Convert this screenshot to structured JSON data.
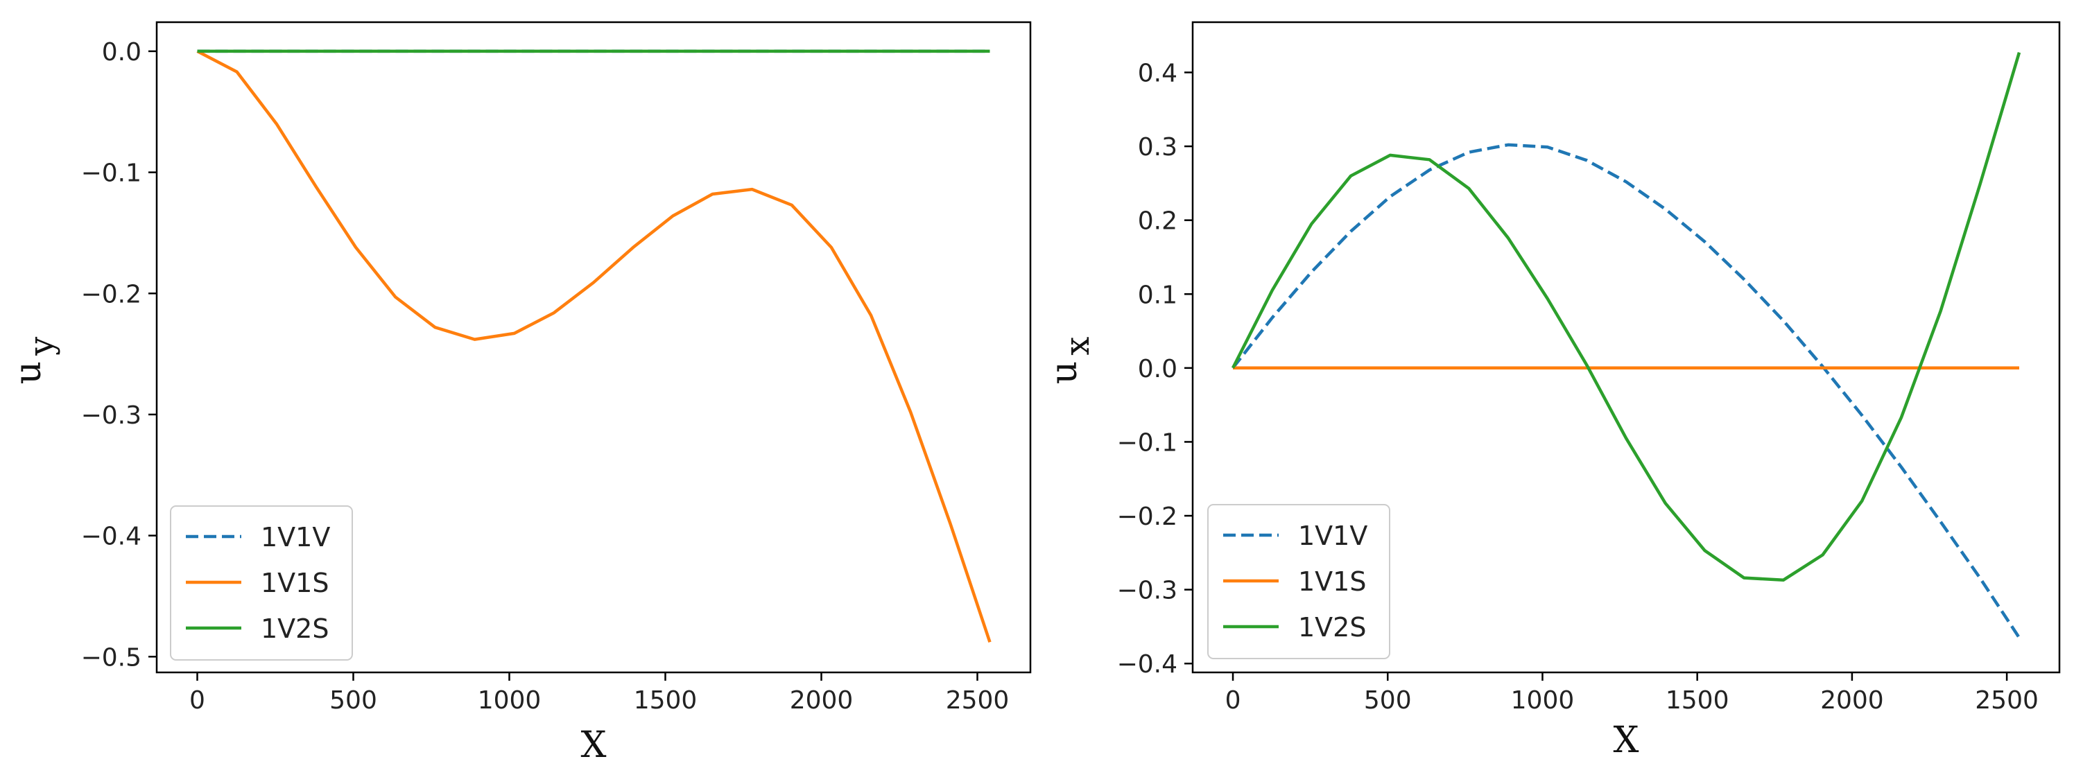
{
  "chart_data": [
    {
      "type": "line",
      "title": "",
      "xlabel": "X",
      "ylabel": "u",
      "ylabel_subscript": "y",
      "xlim": [
        -130,
        2670
      ],
      "ylim": [
        -0.513,
        0.024
      ],
      "xticks": [
        0,
        500,
        1000,
        1500,
        2000,
        2500
      ],
      "xtick_labels": [
        "0",
        "500",
        "1000",
        "1500",
        "2000",
        "2500"
      ],
      "yticks": [
        0.0,
        -0.1,
        -0.2,
        -0.3,
        -0.4,
        -0.5
      ],
      "ytick_labels": [
        "0.0",
        "−0.1",
        "−0.2",
        "−0.3",
        "−0.4",
        "−0.5"
      ],
      "grid": false,
      "legend_position": "lower-left",
      "x": [
        0,
        127,
        254,
        381,
        508,
        635,
        762,
        889,
        1016,
        1143,
        1270,
        1397,
        1524,
        1651,
        1778,
        1905,
        2032,
        2159,
        2286,
        2413,
        2540
      ],
      "series": [
        {
          "name": "1V1V",
          "color": "#1f77b4",
          "dash": "dashed",
          "values": [
            0,
            0,
            0,
            0,
            0,
            0,
            0,
            0,
            0,
            0,
            0,
            0,
            0,
            0,
            0,
            0,
            0,
            0,
            0,
            0,
            0
          ]
        },
        {
          "name": "1V1S",
          "color": "#ff7f0e",
          "dash": "solid",
          "values": [
            0,
            -0.017,
            -0.06,
            -0.112,
            -0.162,
            -0.203,
            -0.228,
            -0.238,
            -0.233,
            -0.216,
            -0.191,
            -0.162,
            -0.136,
            -0.118,
            -0.114,
            -0.127,
            -0.162,
            -0.218,
            -0.298,
            -0.39,
            -0.488
          ]
        },
        {
          "name": "1V2S",
          "color": "#2ca02c",
          "dash": "solid",
          "values": [
            0,
            0,
            0,
            0,
            0,
            0,
            0,
            0,
            0,
            0,
            0,
            0,
            0,
            0,
            0,
            0,
            0,
            0,
            0,
            0,
            0
          ]
        }
      ]
    },
    {
      "type": "line",
      "title": "",
      "xlabel": "X",
      "ylabel": "u",
      "ylabel_subscript": "x",
      "xlim": [
        -130,
        2670
      ],
      "ylim": [
        -0.412,
        0.468
      ],
      "xticks": [
        0,
        500,
        1000,
        1500,
        2000,
        2500
      ],
      "xtick_labels": [
        "0",
        "500",
        "1000",
        "1500",
        "2000",
        "2500"
      ],
      "yticks": [
        0.4,
        0.3,
        0.2,
        0.1,
        0.0,
        -0.1,
        -0.2,
        -0.3,
        -0.4
      ],
      "ytick_labels": [
        "0.4",
        "0.3",
        "0.2",
        "0.1",
        "0.0",
        "−0.1",
        "−0.2",
        "−0.3",
        "−0.4"
      ],
      "grid": false,
      "legend_position": "lower-left",
      "x": [
        0,
        127,
        254,
        381,
        508,
        635,
        762,
        889,
        1016,
        1143,
        1270,
        1397,
        1524,
        1651,
        1778,
        1905,
        2032,
        2159,
        2286,
        2413,
        2540
      ],
      "series": [
        {
          "name": "1V1V",
          "color": "#1f77b4",
          "dash": "dashed",
          "values": [
            0,
            0.068,
            0.13,
            0.185,
            0.232,
            0.268,
            0.292,
            0.302,
            0.299,
            0.281,
            0.252,
            0.215,
            0.171,
            0.12,
            0.064,
            0.002,
            -0.064,
            -0.134,
            -0.208,
            -0.284,
            -0.365
          ]
        },
        {
          "name": "1V1S",
          "color": "#ff7f0e",
          "dash": "solid",
          "values": [
            0,
            0,
            0,
            0,
            0,
            0,
            0,
            0,
            0,
            0,
            0,
            0,
            0,
            0,
            0,
            0,
            0,
            0,
            0,
            0,
            0
          ]
        },
        {
          "name": "1V2S",
          "color": "#2ca02c",
          "dash": "solid",
          "values": [
            0,
            0.105,
            0.195,
            0.26,
            0.288,
            0.282,
            0.243,
            0.176,
            0.094,
            0.004,
            -0.095,
            -0.183,
            -0.247,
            -0.284,
            -0.287,
            -0.253,
            -0.18,
            -0.067,
            0.077,
            0.248,
            0.427
          ]
        }
      ]
    }
  ]
}
